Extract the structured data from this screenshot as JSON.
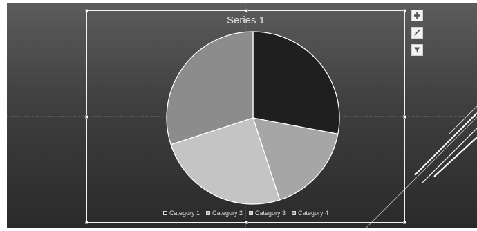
{
  "chart_tools": {
    "add_element_icon": "plus-icon",
    "style_icon": "brush-icon",
    "filter_icon": "filter-icon"
  },
  "chart_data": {
    "type": "pie",
    "title": "Series 1",
    "categories": [
      "Category 1",
      "Category 2",
      "Category 3",
      "Category 4"
    ],
    "values": [
      28,
      17,
      25,
      30
    ],
    "colors": [
      "#1f1f1f",
      "#a6a6a6",
      "#c4c4c4",
      "#8c8c8c"
    ],
    "start_angle_deg": 0,
    "legend_position": "bottom"
  }
}
